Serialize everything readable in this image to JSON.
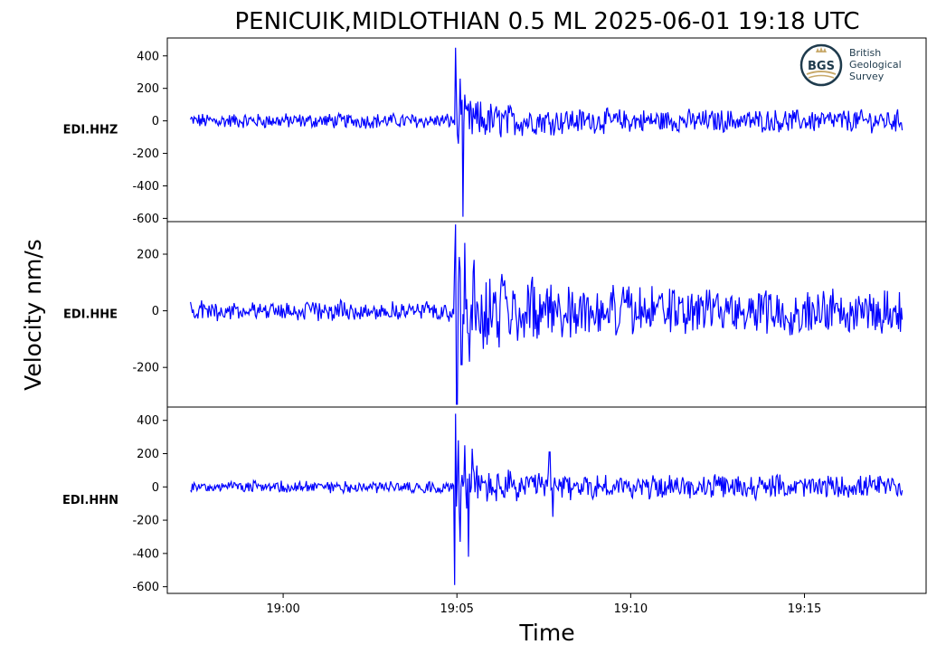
{
  "chart_data": {
    "type": "line",
    "title": "PENICUIK,MIDLOTHIAN 0.5 ML   2025-06-01 19:18 UTC",
    "xlabel": "Time",
    "ylabel": "Velocity nm/s",
    "x_range": [
      "18:56:40",
      "19:18:30"
    ],
    "x_ticks": [
      "19:00",
      "19:05",
      "19:10",
      "19:15"
    ],
    "color": "#0000ff",
    "grid": false,
    "event_time": "19:04:55",
    "panels": [
      {
        "channel": "EDI.HHZ",
        "ylim": [
          -620,
          510
        ],
        "y_ticks": [
          "400",
          "200",
          "0",
          "-200",
          "-400",
          "-600"
        ],
        "noise_before": 40,
        "noise_after": 60,
        "peaks": [
          {
            "t": "19:04:58",
            "v": 450
          },
          {
            "t": "19:05:05",
            "v": 260
          },
          {
            "t": "19:05:10",
            "v": -590
          },
          {
            "t": "19:05:02",
            "v": -140
          }
        ]
      },
      {
        "channel": "EDI.HHE",
        "ylim": [
          -340,
          315
        ],
        "y_ticks": [
          "200",
          "0",
          "-200"
        ],
        "noise_before": 30,
        "noise_after": 70,
        "peaks": [
          {
            "t": "19:04:58",
            "v": 305
          },
          {
            "t": "19:05:00",
            "v": -330
          },
          {
            "t": "19:05:04",
            "v": 190
          },
          {
            "t": "19:05:08",
            "v": -190
          },
          {
            "t": "19:05:14",
            "v": 240
          },
          {
            "t": "19:05:22",
            "v": -180
          },
          {
            "t": "19:05:30",
            "v": 180
          },
          {
            "t": "19:05:52",
            "v": -120
          },
          {
            "t": "19:06:18",
            "v": 130
          },
          {
            "t": "19:07:10",
            "v": 120
          }
        ]
      },
      {
        "channel": "EDI.HHN",
        "ylim": [
          -640,
          480
        ],
        "y_ticks": [
          "400",
          "200",
          "0",
          "-200",
          "-400",
          "-600"
        ],
        "noise_before": 30,
        "noise_after": 60,
        "peaks": [
          {
            "t": "19:04:58",
            "v": 440
          },
          {
            "t": "19:04:56",
            "v": -590
          },
          {
            "t": "19:05:02",
            "v": 280
          },
          {
            "t": "19:05:06",
            "v": -330
          },
          {
            "t": "19:05:14",
            "v": 250
          },
          {
            "t": "19:05:20",
            "v": -420
          },
          {
            "t": "19:05:26",
            "v": 230
          },
          {
            "t": "19:07:40",
            "v": 210
          },
          {
            "t": "19:07:46",
            "v": -180
          }
        ]
      }
    ]
  },
  "logo": {
    "badge": "BGS",
    "lines": [
      "British",
      "Geological",
      "Survey"
    ],
    "color": "#1f3b4d",
    "accent": "#c8a96a"
  }
}
